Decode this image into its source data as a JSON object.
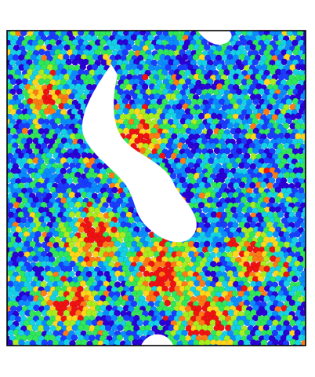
{
  "figure": {
    "kind": "particle-simulation-render",
    "background": "#ffffff",
    "frame_color": "#000000",
    "particle_palette": [
      "#2a00d6",
      "#1a3cff",
      "#0a8cff",
      "#14d2e6",
      "#2ee85a",
      "#a8ee1e",
      "#ffd61a",
      "#ff7a14",
      "#f01212"
    ]
  }
}
